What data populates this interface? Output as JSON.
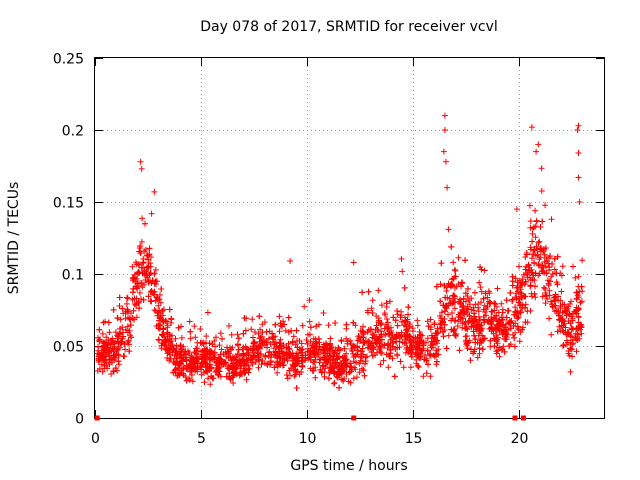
{
  "chart_data": {
    "type": "scatter",
    "title": "Day 078 of 2017, SRMTID for receiver vcvl",
    "xlabel": "GPS time / hours",
    "ylabel": "SRMTID / TECUs",
    "xlim": [
      0,
      24
    ],
    "ylim": [
      0,
      0.25
    ],
    "x_ticks": [
      0,
      5,
      10,
      15,
      20
    ],
    "x_tick_labels": [
      "0",
      "5",
      "10",
      "15",
      "20"
    ],
    "y_ticks": [
      0,
      0.05,
      0.1,
      0.15,
      0.2,
      0.25
    ],
    "y_tick_labels": [
      "0",
      "0.05",
      "0.1",
      "0.15",
      "0.2",
      "0.25"
    ],
    "grid": true,
    "marker": "+",
    "color": "#ff0000",
    "data_gap_markers_x": [
      0.1,
      12.2,
      19.8,
      20.2
    ],
    "envelope": {
      "x": [
        0.1,
        0.5,
        1.0,
        1.5,
        2.0,
        2.3,
        2.6,
        3.0,
        3.5,
        4.0,
        4.5,
        5.0,
        5.5,
        6.0,
        6.5,
        7.0,
        7.5,
        8.0,
        8.5,
        9.0,
        9.5,
        10.0,
        10.5,
        11.0,
        11.5,
        12.0,
        12.5,
        13.0,
        13.5,
        14.0,
        14.5,
        15.0,
        15.5,
        16.0,
        16.5,
        17.0,
        17.5,
        18.0,
        18.5,
        19.0,
        19.5,
        20.0,
        20.5,
        21.0,
        21.5,
        22.0,
        22.5,
        23.0
      ],
      "center": [
        0.045,
        0.045,
        0.045,
        0.065,
        0.09,
        0.11,
        0.1,
        0.07,
        0.05,
        0.04,
        0.037,
        0.04,
        0.04,
        0.04,
        0.037,
        0.04,
        0.045,
        0.05,
        0.05,
        0.045,
        0.04,
        0.045,
        0.045,
        0.04,
        0.035,
        0.04,
        0.05,
        0.055,
        0.055,
        0.055,
        0.06,
        0.05,
        0.05,
        0.05,
        0.08,
        0.085,
        0.065,
        0.06,
        0.07,
        0.06,
        0.06,
        0.08,
        0.1,
        0.115,
        0.09,
        0.07,
        0.06,
        0.08
      ],
      "spread": [
        0.02,
        0.02,
        0.025,
        0.03,
        0.04,
        0.045,
        0.04,
        0.035,
        0.025,
        0.025,
        0.02,
        0.02,
        0.02,
        0.02,
        0.02,
        0.02,
        0.02,
        0.025,
        0.025,
        0.025,
        0.02,
        0.025,
        0.025,
        0.02,
        0.02,
        0.025,
        0.03,
        0.03,
        0.03,
        0.03,
        0.03,
        0.025,
        0.025,
        0.03,
        0.05,
        0.05,
        0.04,
        0.035,
        0.035,
        0.03,
        0.03,
        0.04,
        0.05,
        0.05,
        0.045,
        0.04,
        0.035,
        0.05
      ],
      "points_per_hour": 130
    },
    "peaks": [
      {
        "x": 2.15,
        "y": 0.178
      },
      {
        "x": 2.2,
        "y": 0.173
      },
      {
        "x": 2.8,
        "y": 0.157
      },
      {
        "x": 9.2,
        "y": 0.109
      },
      {
        "x": 12.2,
        "y": 0.108
      },
      {
        "x": 16.5,
        "y": 0.21
      },
      {
        "x": 16.5,
        "y": 0.2
      },
      {
        "x": 16.45,
        "y": 0.185
      },
      {
        "x": 16.55,
        "y": 0.178
      },
      {
        "x": 16.6,
        "y": 0.16
      },
      {
        "x": 20.6,
        "y": 0.202
      },
      {
        "x": 20.9,
        "y": 0.19
      },
      {
        "x": 20.8,
        "y": 0.185
      },
      {
        "x": 22.8,
        "y": 0.203
      },
      {
        "x": 22.75,
        "y": 0.2
      },
      {
        "x": 22.8,
        "y": 0.184
      },
      {
        "x": 22.8,
        "y": 0.167
      },
      {
        "x": 22.85,
        "y": 0.15
      }
    ]
  }
}
